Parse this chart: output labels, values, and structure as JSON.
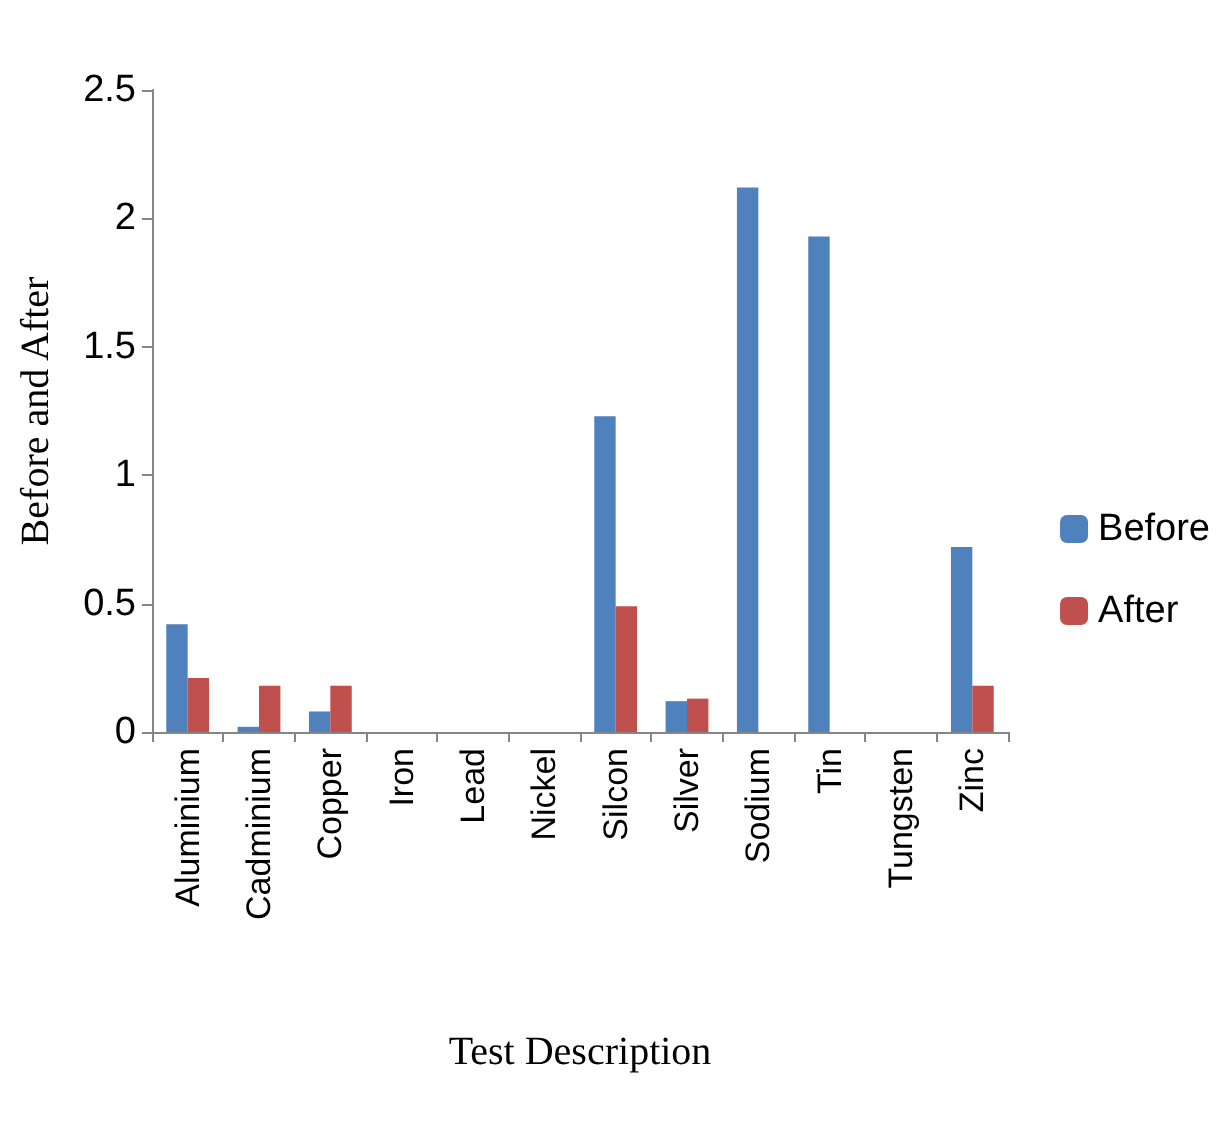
{
  "chart_data": {
    "type": "bar",
    "xlabel": "Test Description",
    "ylabel": "Before and After",
    "categories": [
      "Aluminium",
      "Cadminium",
      "Copper",
      "Iron",
      "Lead",
      "Nickel",
      "Silcon",
      "Silver",
      "Sodium",
      "Tin",
      "Tungsten",
      "Zinc"
    ],
    "series": [
      {
        "name": "Before",
        "color": "#4f81bd",
        "values": [
          0.42,
          0.02,
          0.08,
          0,
          0,
          0,
          1.23,
          0.12,
          2.12,
          1.93,
          0,
          0.72
        ]
      },
      {
        "name": "After",
        "color": "#c0504d",
        "values": [
          0.21,
          0.18,
          0.18,
          0,
          0,
          0,
          0.49,
          0.13,
          0,
          0,
          0,
          0.18
        ]
      }
    ],
    "ylim": [
      0,
      2.5
    ],
    "yticks": [
      0,
      0.5,
      1,
      1.5,
      2,
      2.5
    ],
    "grid": false,
    "legend": "right"
  }
}
